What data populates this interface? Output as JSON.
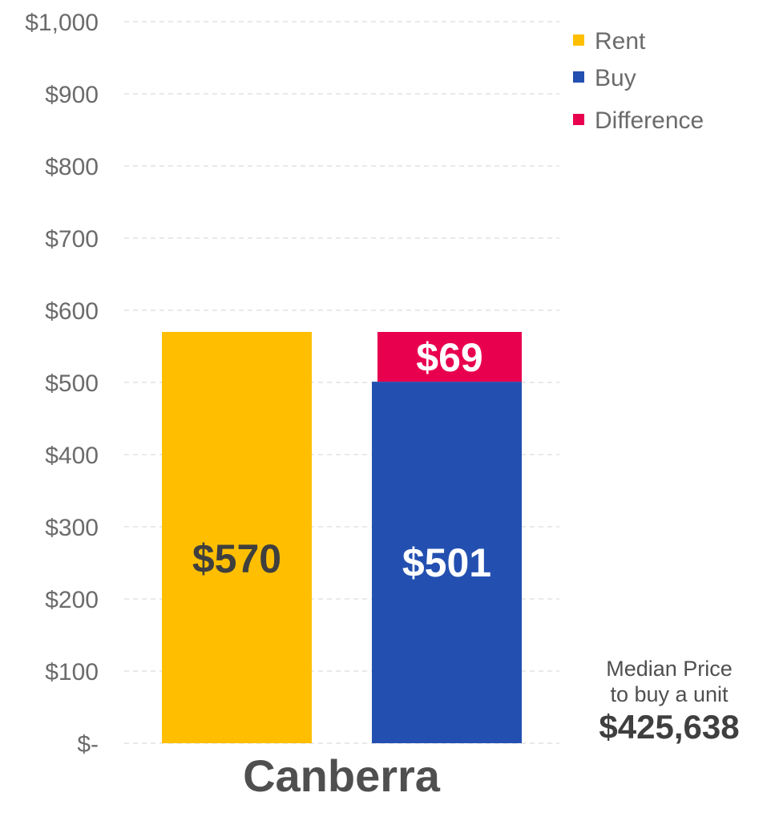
{
  "chart_data": {
    "type": "bar",
    "categories": [
      "Canberra"
    ],
    "ylim": [
      0,
      1000
    ],
    "yticks": [
      {
        "value": 0,
        "label": "$-"
      },
      {
        "value": 100,
        "label": "$100"
      },
      {
        "value": 200,
        "label": "$200"
      },
      {
        "value": 300,
        "label": "$300"
      },
      {
        "value": 400,
        "label": "$400"
      },
      {
        "value": 500,
        "label": "$500"
      },
      {
        "value": 600,
        "label": "$600"
      },
      {
        "value": 700,
        "label": "$700"
      },
      {
        "value": 800,
        "label": "$800"
      },
      {
        "value": 900,
        "label": "$900"
      },
      {
        "value": 1000,
        "label": "$1,000"
      }
    ],
    "grid": true,
    "legend_position": "top-right",
    "bars": [
      {
        "name": "Rent",
        "segments": [
          {
            "series": "Rent",
            "value": 570,
            "label": "$570",
            "color": "#FFBF00",
            "label_color": "#3f3f3f"
          }
        ]
      },
      {
        "name": "Buy",
        "segments": [
          {
            "series": "Buy",
            "value": 501,
            "label": "$501",
            "color": "#2350B0",
            "label_color": "#ffffff"
          },
          {
            "series": "Difference",
            "value": 69,
            "label": "$69",
            "color": "#E8004F",
            "label_color": "#ffffff"
          }
        ]
      }
    ],
    "legend": [
      {
        "name": "Rent",
        "color": "#FFBF00"
      },
      {
        "name": "Buy",
        "color": "#2350B0"
      },
      {
        "name": "Difference",
        "color": "#E8004F"
      }
    ]
  },
  "annotation": {
    "line1": "Median Price",
    "line2": "to buy a unit",
    "price": "$425,638"
  }
}
